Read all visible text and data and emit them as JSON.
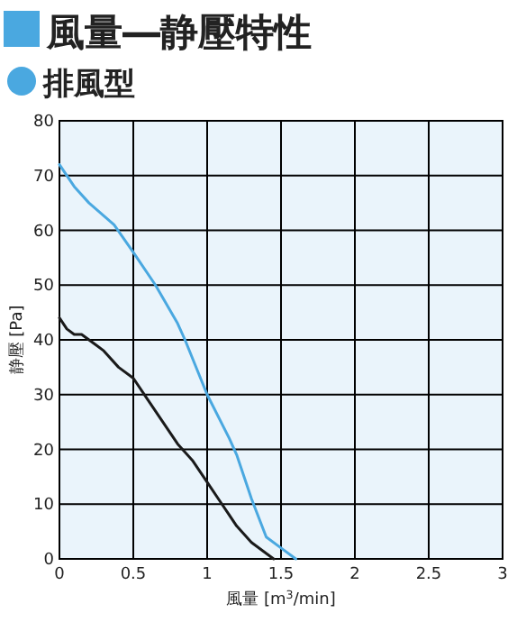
{
  "chart_data": {
    "type": "line",
    "title": "風量―静壓特性",
    "subtitle": "排風型",
    "xlabel": "風量 [m$^{3}$/min]",
    "ylabel": "静壓 [Pa]",
    "xlim": [
      0,
      3
    ],
    "xticks": [
      0,
      0.5,
      1,
      1.5,
      2,
      2.5,
      3
    ],
    "ylim": [
      0,
      80
    ],
    "yticks": [
      0,
      10,
      20,
      30,
      40,
      50,
      60,
      70,
      80
    ],
    "grid": true,
    "series": [
      {
        "color": "#4aa8e0",
        "x": [
          0,
          0.1,
          0.2,
          0.37,
          0.5,
          0.65,
          0.8,
          0.85,
          1,
          1.15,
          1.2,
          1.3,
          1.4,
          1.5,
          1.6
        ],
        "values": [
          72,
          68,
          65,
          61,
          56,
          50,
          43,
          40,
          30,
          22,
          19,
          11,
          4,
          2,
          0
        ]
      },
      {
        "color": "#1a1a1a",
        "x": [
          0,
          0.05,
          0.1,
          0.15,
          0.25,
          0.3,
          0.4,
          0.5,
          0.6,
          0.7,
          0.8,
          0.9,
          1,
          1.1,
          1.2,
          1.3,
          1.45
        ],
        "values": [
          44,
          42,
          41,
          41,
          39,
          38,
          35,
          33,
          29,
          25,
          21,
          18,
          14,
          10,
          6,
          3,
          0
        ]
      }
    ]
  }
}
